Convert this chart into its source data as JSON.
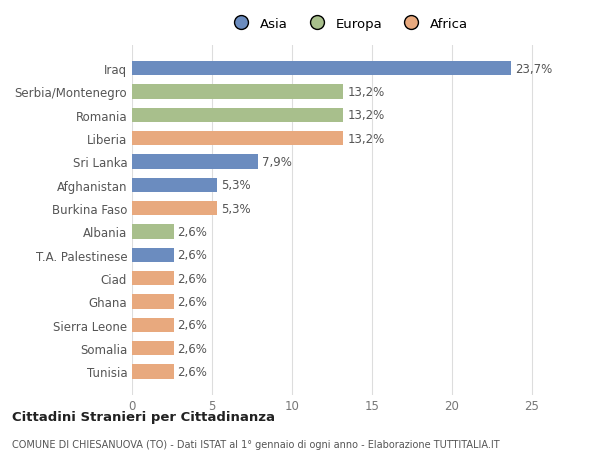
{
  "categories": [
    "Tunisia",
    "Somalia",
    "Sierra Leone",
    "Ghana",
    "Ciad",
    "T.A. Palestinese",
    "Albania",
    "Burkina Faso",
    "Afghanistan",
    "Sri Lanka",
    "Liberia",
    "Romania",
    "Serbia/Montenegro",
    "Iraq"
  ],
  "values": [
    2.6,
    2.6,
    2.6,
    2.6,
    2.6,
    2.6,
    2.6,
    5.3,
    5.3,
    7.9,
    13.2,
    13.2,
    13.2,
    23.7
  ],
  "colors": [
    "#e8a97e",
    "#e8a97e",
    "#e8a97e",
    "#e8a97e",
    "#e8a97e",
    "#6b8cbf",
    "#a8bf8c",
    "#e8a97e",
    "#6b8cbf",
    "#6b8cbf",
    "#e8a97e",
    "#a8bf8c",
    "#a8bf8c",
    "#6b8cbf"
  ],
  "labels": [
    "2,6%",
    "2,6%",
    "2,6%",
    "2,6%",
    "2,6%",
    "2,6%",
    "2,6%",
    "5,3%",
    "5,3%",
    "7,9%",
    "13,2%",
    "13,2%",
    "13,2%",
    "23,7%"
  ],
  "legend_labels": [
    "Asia",
    "Europa",
    "Africa"
  ],
  "legend_colors": [
    "#6b8cbf",
    "#a8bf8c",
    "#e8a97e"
  ],
  "title": "Cittadini Stranieri per Cittadinanza",
  "subtitle": "COMUNE DI CHIESANUOVA (TO) - Dati ISTAT al 1° gennaio di ogni anno - Elaborazione TUTTITALIA.IT",
  "xlim": [
    0,
    27
  ],
  "xticks": [
    0,
    5,
    10,
    15,
    20,
    25
  ],
  "background_color": "#ffffff",
  "bar_height": 0.62,
  "grid_color": "#dddddd",
  "label_fontsize": 8.5,
  "tick_fontsize": 8.5,
  "yticklabel_fontsize": 8.5
}
